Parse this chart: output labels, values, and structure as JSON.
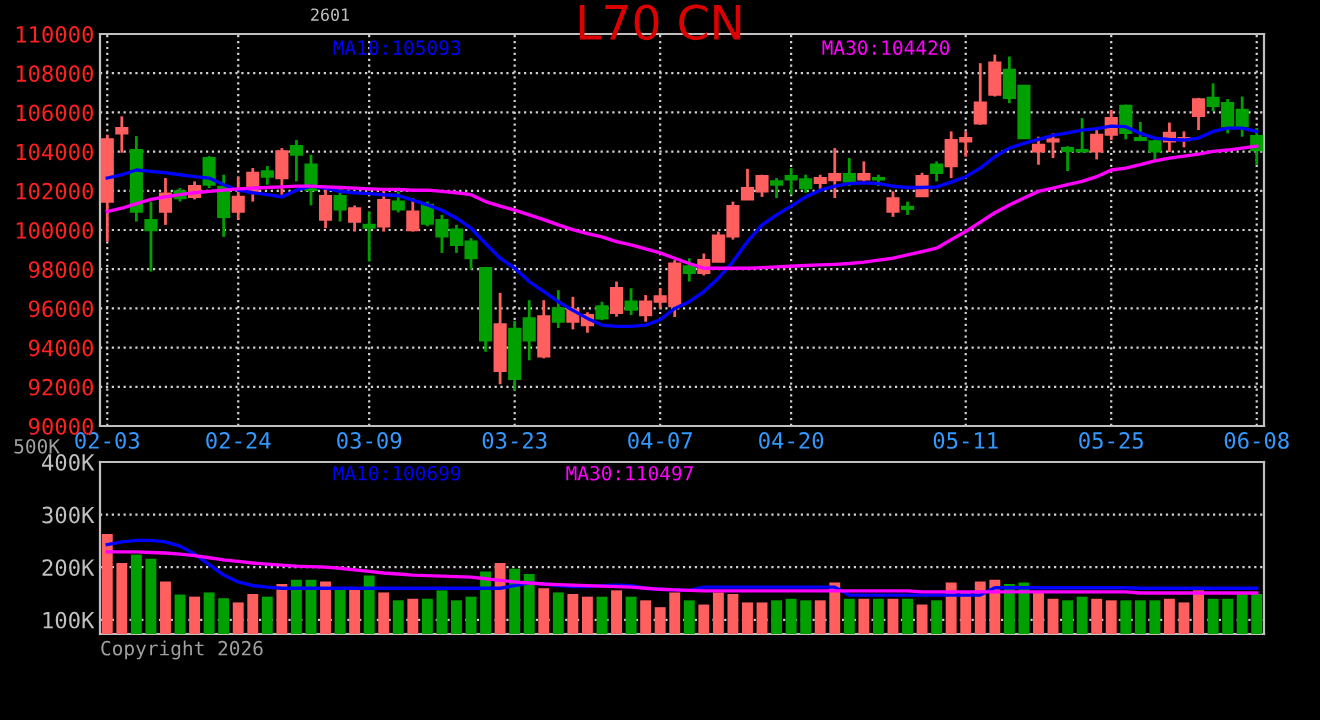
{
  "chart_data": [
    {
      "type": "candlestick",
      "title": "L70 CN",
      "subtitle": "2601",
      "categories": [
        "02-03",
        null,
        null,
        null,
        null,
        null,
        null,
        null,
        null,
        "02-24",
        null,
        null,
        null,
        null,
        null,
        null,
        null,
        null,
        "03-09",
        null,
        null,
        null,
        null,
        null,
        null,
        null,
        null,
        null,
        "03-23",
        null,
        null,
        null,
        null,
        null,
        null,
        null,
        null,
        null,
        "04-07",
        null,
        null,
        null,
        null,
        null,
        null,
        null,
        null,
        "04-20",
        null,
        null,
        null,
        null,
        null,
        null,
        null,
        null,
        null,
        null,
        null,
        "05-11",
        null,
        null,
        null,
        null,
        null,
        null,
        null,
        null,
        null,
        "05-25",
        null,
        null,
        null,
        null,
        null,
        null,
        null,
        null,
        null,
        "06-08"
      ],
      "ohlc": [
        [
          101450,
          104860,
          99410,
          104620
        ],
        [
          104930,
          105800,
          103940,
          105200
        ],
        [
          104080,
          104790,
          100430,
          100940
        ],
        [
          100500,
          101450,
          97880,
          99990
        ],
        [
          100940,
          102650,
          100260,
          101860
        ],
        [
          101970,
          102140,
          101450,
          101630
        ],
        [
          101690,
          102480,
          101560,
          102240
        ],
        [
          103670,
          103770,
          102140,
          102310
        ],
        [
          102200,
          102820,
          99650,
          100670
        ],
        [
          100940,
          102720,
          100530,
          101690
        ],
        [
          101970,
          103160,
          101450,
          102920
        ],
        [
          102990,
          103260,
          102310,
          102720
        ],
        [
          102650,
          104180,
          101800,
          104010
        ],
        [
          104280,
          104590,
          102480,
          103840
        ],
        [
          103330,
          103840,
          101260,
          102030
        ],
        [
          100530,
          102240,
          100090,
          101730
        ],
        [
          101730,
          102140,
          100430,
          101050
        ],
        [
          100430,
          101250,
          99920,
          101110
        ],
        [
          100260,
          100940,
          98390,
          100120
        ],
        [
          100190,
          102140,
          99920,
          101520
        ],
        [
          101450,
          101970,
          100900,
          101050
        ],
        [
          99990,
          101620,
          99920,
          100940
        ],
        [
          101280,
          101450,
          100190,
          100330
        ],
        [
          100500,
          100770,
          98830,
          99680
        ],
        [
          100020,
          100260,
          98830,
          99240
        ],
        [
          99410,
          99580,
          97970,
          98560
        ],
        [
          98050,
          98050,
          93790,
          94370
        ],
        [
          92810,
          96790,
          92130,
          95190
        ],
        [
          94960,
          95360,
          91810,
          92410
        ],
        [
          95490,
          96420,
          93350,
          94370
        ],
        [
          93550,
          96420,
          93450,
          95600
        ],
        [
          96000,
          96930,
          95000,
          95320
        ],
        [
          95320,
          96590,
          94930,
          95940
        ],
        [
          95150,
          95800,
          94760,
          95660
        ],
        [
          96110,
          96340,
          95400,
          95490
        ],
        [
          95770,
          97370,
          95580,
          97030
        ],
        [
          96340,
          97030,
          95660,
          95940
        ],
        [
          95660,
          96680,
          95320,
          96340
        ],
        [
          96340,
          97030,
          96000,
          96610
        ],
        [
          96110,
          98460,
          95560,
          98290
        ],
        [
          98150,
          98560,
          97370,
          97810
        ],
        [
          97810,
          98800,
          97680,
          98460
        ],
        [
          98390,
          99920,
          98390,
          99720
        ],
        [
          99680,
          101450,
          99510,
          101220
        ],
        [
          101560,
          103120,
          101560,
          102140
        ],
        [
          101970,
          102820,
          101690,
          102750
        ],
        [
          102480,
          102650,
          101630,
          102310
        ],
        [
          102750,
          103160,
          101800,
          102580
        ],
        [
          102580,
          102820,
          101900,
          102140
        ],
        [
          102410,
          102820,
          102030,
          102650
        ],
        [
          102550,
          104180,
          101630,
          102850
        ],
        [
          102850,
          103670,
          102240,
          102480
        ],
        [
          102580,
          103500,
          102480,
          102850
        ],
        [
          102650,
          102820,
          102240,
          102580
        ],
        [
          100940,
          101970,
          100670,
          101620
        ],
        [
          101180,
          101450,
          100770,
          101080
        ],
        [
          101730,
          102920,
          101690,
          102750
        ],
        [
          103330,
          103500,
          102480,
          102920
        ],
        [
          103260,
          105030,
          102650,
          104590
        ],
        [
          104520,
          105030,
          103740,
          104690
        ],
        [
          105440,
          108510,
          105370,
          106500
        ],
        [
          106910,
          108950,
          106810,
          108540
        ],
        [
          108170,
          108850,
          106470,
          106740
        ],
        [
          107350,
          107350,
          104690,
          104690
        ],
        [
          104010,
          104760,
          103330,
          104350
        ],
        [
          104520,
          104930,
          103670,
          104620
        ],
        [
          104180,
          104280,
          103010,
          104040
        ],
        [
          104080,
          105710,
          104010,
          104010
        ],
        [
          104010,
          105100,
          103600,
          104860
        ],
        [
          104860,
          106130,
          104590,
          105710
        ],
        [
          106330,
          106400,
          104620,
          104960
        ],
        [
          104690,
          105510,
          104590,
          104590
        ],
        [
          104520,
          104620,
          103570,
          104010
        ],
        [
          104520,
          105480,
          103980,
          104960
        ],
        [
          104590,
          105030,
          104220,
          104690
        ],
        [
          105820,
          106740,
          105100,
          106670
        ],
        [
          106740,
          107480,
          106060,
          106330
        ],
        [
          106470,
          106680,
          104930,
          105300
        ],
        [
          106130,
          106810,
          104760,
          105300
        ],
        [
          104790,
          105200,
          103330,
          104080
        ]
      ],
      "colors": [
        "#ff5f5f",
        "#ff5f5f",
        "#00a000",
        "#00a000",
        "#ff5f5f",
        "#00a000",
        "#ff5f5f",
        "#00a000",
        "#00a000",
        "#ff5f5f",
        "#ff5f5f",
        "#00a000",
        "#ff5f5f",
        "#00a000",
        "#00a000",
        "#ff5f5f",
        "#00a000",
        "#ff5f5f",
        "#00a000",
        "#ff5f5f",
        "#00a000",
        "#ff5f5f",
        "#00a000",
        "#00a000",
        "#00a000",
        "#00a000",
        "#00a000",
        "#ff5f5f",
        "#00a000",
        "#00a000",
        "#ff5f5f",
        "#00a000",
        "#ff5f5f",
        "#ff5f5f",
        "#00a000",
        "#ff5f5f",
        "#00a000",
        "#ff5f5f",
        "#ff5f5f",
        "#ff5f5f",
        "#00a000",
        "#ff5f5f",
        "#ff5f5f",
        "#ff5f5f",
        "#ff5f5f",
        "#ff5f5f",
        "#00a000",
        "#00a000",
        "#00a000",
        "#ff5f5f",
        "#ff5f5f",
        "#00a000",
        "#ff5f5f",
        "#00a000",
        "#ff5f5f",
        "#00a000",
        "#ff5f5f",
        "#00a000",
        "#ff5f5f",
        "#ff5f5f",
        "#ff5f5f",
        "#ff5f5f",
        "#00a000",
        "#00a000",
        "#ff5f5f",
        "#ff5f5f",
        "#00a000",
        "#00a000",
        "#ff5f5f",
        "#ff5f5f",
        "#00a000",
        "#00a000",
        "#00a000",
        "#ff5f5f",
        "#ff5f5f",
        "#ff5f5f",
        "#00a000",
        "#00a000",
        "#00a000",
        "#00a000"
      ],
      "series": [
        {
          "type": "line",
          "name": "MA10:105093",
          "color": "#0000ff",
          "values": [
            102650,
            102820,
            103060,
            102990,
            102920,
            102820,
            102720,
            102650,
            102310,
            102030,
            101900,
            101800,
            101690,
            102030,
            102240,
            102140,
            101970,
            101900,
            101860,
            101800,
            101760,
            101520,
            101280,
            101010,
            100600,
            100090,
            99310,
            98560,
            98050,
            97370,
            96860,
            96340,
            95900,
            95490,
            95150,
            95080,
            95080,
            95150,
            95420,
            96000,
            96340,
            96860,
            97540,
            98390,
            99410,
            100260,
            100770,
            101220,
            101690,
            102030,
            102240,
            102370,
            102410,
            102370,
            102240,
            102170,
            102170,
            102200,
            102440,
            102720,
            103160,
            103740,
            104180,
            104420,
            104620,
            104830,
            104960,
            105100,
            105170,
            105300,
            105270,
            104930,
            104690,
            104620,
            104590,
            104690,
            105030,
            105200,
            105200,
            105030
          ]
        },
        {
          "type": "line",
          "name": "MA30:104420",
          "color": "#ff00ff",
          "values": [
            100940,
            101110,
            101350,
            101560,
            101690,
            101800,
            101900,
            101970,
            102030,
            102100,
            102140,
            102170,
            102200,
            102240,
            102240,
            102200,
            102170,
            102140,
            102100,
            102070,
            102070,
            102030,
            102030,
            101970,
            101900,
            101800,
            101450,
            101220,
            101010,
            100770,
            100530,
            100260,
            100020,
            99820,
            99650,
            99410,
            99240,
            99040,
            98830,
            98560,
            98290,
            98050,
            98050,
            98050,
            98050,
            98080,
            98120,
            98150,
            98190,
            98220,
            98250,
            98290,
            98360,
            98460,
            98560,
            98730,
            98900,
            99070,
            99510,
            99920,
            100400,
            100880,
            101280,
            101630,
            101970,
            102140,
            102310,
            102480,
            102720,
            103060,
            103160,
            103330,
            103530,
            103670,
            103770,
            103870,
            104010,
            104080,
            104180,
            104280
          ]
        }
      ],
      "ylim": [
        90000,
        110000
      ],
      "yticks": [
        90000,
        92000,
        94000,
        96000,
        98000,
        100000,
        102000,
        104000,
        106000,
        108000,
        110000
      ],
      "grid": true
    },
    {
      "type": "bar",
      "categories": [
        null,
        null,
        null,
        null,
        null,
        null,
        null,
        null,
        null,
        null,
        null,
        null,
        null,
        null,
        null,
        null,
        null,
        null,
        null,
        null,
        null,
        null,
        null,
        null,
        null,
        null,
        null,
        null,
        null,
        null,
        null,
        null,
        null,
        null,
        null,
        null,
        null,
        null,
        null,
        null,
        null,
        null,
        null,
        null,
        null,
        null,
        null,
        null,
        null,
        null,
        null,
        null,
        null,
        null,
        null,
        null,
        null,
        null,
        null,
        null,
        null,
        null,
        null,
        null,
        null,
        null,
        null,
        null,
        null,
        null,
        null,
        null,
        null,
        null,
        null,
        null,
        null,
        null,
        null,
        null
      ],
      "values": [
        263000,
        208000,
        224000,
        216000,
        173000,
        148000,
        144000,
        152000,
        141000,
        133000,
        149000,
        144000,
        168000,
        176000,
        176000,
        173000,
        160000,
        160000,
        184000,
        152000,
        137000,
        140000,
        140000,
        156000,
        137000,
        144000,
        192000,
        208000,
        197000,
        187000,
        160000,
        152000,
        149000,
        144000,
        144000,
        156000,
        144000,
        137000,
        124000,
        152000,
        137000,
        129000,
        152000,
        149000,
        133000,
        133000,
        137000,
        140000,
        137000,
        137000,
        171000,
        140000,
        140000,
        140000,
        140000,
        140000,
        129000,
        137000,
        171000,
        152000,
        173000,
        176000,
        168000,
        171000,
        152000,
        140000,
        137000,
        144000,
        140000,
        137000,
        137000,
        137000,
        137000,
        140000,
        133000,
        156000,
        140000,
        140000,
        149000,
        149000
      ],
      "colors": [
        "#ff5f5f",
        "#ff5f5f",
        "#00a000",
        "#00a000",
        "#ff5f5f",
        "#00a000",
        "#ff5f5f",
        "#00a000",
        "#00a000",
        "#ff5f5f",
        "#ff5f5f",
        "#00a000",
        "#ff5f5f",
        "#00a000",
        "#00a000",
        "#ff5f5f",
        "#00a000",
        "#ff5f5f",
        "#00a000",
        "#ff5f5f",
        "#00a000",
        "#ff5f5f",
        "#00a000",
        "#00a000",
        "#00a000",
        "#00a000",
        "#00a000",
        "#ff5f5f",
        "#00a000",
        "#00a000",
        "#ff5f5f",
        "#00a000",
        "#ff5f5f",
        "#ff5f5f",
        "#00a000",
        "#ff5f5f",
        "#00a000",
        "#ff5f5f",
        "#ff5f5f",
        "#ff5f5f",
        "#00a000",
        "#ff5f5f",
        "#ff5f5f",
        "#ff5f5f",
        "#ff5f5f",
        "#ff5f5f",
        "#00a000",
        "#00a000",
        "#00a000",
        "#ff5f5f",
        "#ff5f5f",
        "#00a000",
        "#ff5f5f",
        "#00a000",
        "#ff5f5f",
        "#00a000",
        "#ff5f5f",
        "#00a000",
        "#ff5f5f",
        "#ff5f5f",
        "#ff5f5f",
        "#ff5f5f",
        "#00a000",
        "#00a000",
        "#ff5f5f",
        "#ff5f5f",
        "#00a000",
        "#00a000",
        "#ff5f5f",
        "#ff5f5f",
        "#00a000",
        "#00a000",
        "#00a000",
        "#ff5f5f",
        "#ff5f5f",
        "#ff5f5f",
        "#00a000",
        "#00a000",
        "#00a000",
        "#00a000"
      ],
      "series": [
        {
          "type": "line",
          "name": "MA10:100699",
          "color": "#0000ff",
          "values": [
            243000,
            248000,
            251000,
            251000,
            248000,
            240000,
            225000,
            205000,
            185000,
            172000,
            165000,
            162000,
            160000,
            160000,
            160000,
            160000,
            160000,
            160000,
            160000,
            160000,
            160000,
            160000,
            160000,
            160000,
            160000,
            160000,
            160000,
            160000,
            165000,
            170000,
            168000,
            165000,
            163000,
            163000,
            165000,
            166000,
            165000,
            160000,
            158000,
            157000,
            156000,
            162000,
            162000,
            162000,
            162000,
            162000,
            162000,
            162000,
            162000,
            162000,
            162000,
            147000,
            147000,
            147000,
            147000,
            147000,
            147000,
            147000,
            147000,
            147000,
            147000,
            161000,
            161000,
            161000,
            161000,
            161000,
            161000,
            161000,
            161000,
            161000,
            161000,
            160000,
            160000,
            160000,
            160000,
            160000,
            160000,
            160000,
            160000,
            160000
          ]
        },
        {
          "type": "line",
          "name": "MA30:110497",
          "color": "#ff00ff",
          "values": [
            229000,
            229000,
            229000,
            228000,
            227000,
            225000,
            222000,
            218000,
            214000,
            211000,
            208000,
            206000,
            204000,
            202000,
            201000,
            200000,
            198000,
            195000,
            192000,
            189000,
            187000,
            185000,
            184000,
            183000,
            182000,
            181000,
            178000,
            175000,
            172000,
            170000,
            168000,
            167000,
            166000,
            165000,
            164000,
            163000,
            162000,
            160000,
            158000,
            157000,
            156000,
            155000,
            155000,
            155000,
            155000,
            155000,
            155000,
            155000,
            155000,
            155000,
            155000,
            155000,
            155000,
            155000,
            155000,
            155000,
            153000,
            153000,
            153000,
            153000,
            153000,
            153000,
            153000,
            153000,
            153000,
            153000,
            153000,
            153000,
            153000,
            153000,
            153000,
            151000,
            151000,
            151000,
            151000,
            151000,
            151000,
            151000,
            151000,
            151000
          ]
        }
      ],
      "ylim": [
        73000,
        400000
      ],
      "yticks": [
        {
          "value": 100000,
          "label": "100K"
        },
        {
          "value": 200000,
          "label": "200K"
        },
        {
          "value": 300000,
          "label": "300K"
        },
        {
          "value": 400000,
          "label": "400K"
        }
      ],
      "grid": true,
      "annotations": [
        "500K",
        "Copyright 2026"
      ]
    }
  ]
}
